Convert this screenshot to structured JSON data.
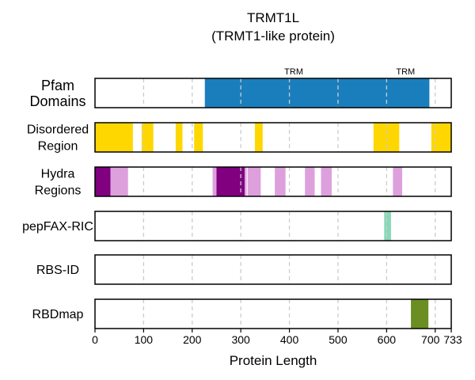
{
  "chart_data": {
    "type": "bar",
    "title": "TRMT1L",
    "subtitle": "(TRMT1-like protein)",
    "xlabel": "Protein Length",
    "xlim": [
      0,
      733
    ],
    "x_ticks": [
      0,
      100,
      200,
      300,
      400,
      500,
      600,
      700,
      733
    ],
    "grid": "vertical dashed at every 100",
    "tracks": [
      {
        "name": "Pfam\nDomains",
        "features": [
          {
            "start": 226,
            "end": 688,
            "color": "#1a7ebd"
          }
        ],
        "annotations": [
          {
            "text": "TRM",
            "x": 409
          },
          {
            "text": "TRM",
            "x": 639
          }
        ]
      },
      {
        "name": "Disordered\nRegion",
        "features": [
          {
            "start": 0,
            "end": 78,
            "color": "#ffd700"
          },
          {
            "start": 96,
            "end": 120,
            "color": "#ffd700"
          },
          {
            "start": 166,
            "end": 180,
            "color": "#ffd700"
          },
          {
            "start": 204,
            "end": 222,
            "color": "#ffd700"
          },
          {
            "start": 329,
            "end": 345,
            "color": "#ffd700"
          },
          {
            "start": 573,
            "end": 626,
            "color": "#ffd700"
          },
          {
            "start": 692,
            "end": 733,
            "color": "#ffd700"
          }
        ]
      },
      {
        "name": "Hydra\nRegions",
        "features": [
          {
            "start": 0,
            "end": 32,
            "color": "#800080"
          },
          {
            "start": 32,
            "end": 68,
            "color": "#dda0dd"
          },
          {
            "start": 242,
            "end": 250,
            "color": "#dda0dd"
          },
          {
            "start": 250,
            "end": 308,
            "color": "#800080"
          },
          {
            "start": 308,
            "end": 312,
            "color": "#dda0dd"
          },
          {
            "start": 314,
            "end": 341,
            "color": "#dda0dd"
          },
          {
            "start": 370,
            "end": 392,
            "color": "#dda0dd"
          },
          {
            "start": 432,
            "end": 452,
            "color": "#dda0dd"
          },
          {
            "start": 465,
            "end": 487,
            "color": "#dda0dd"
          },
          {
            "start": 613,
            "end": 632,
            "color": "#dda0dd"
          }
        ]
      },
      {
        "name": "pepFAX-RIC",
        "features": [
          {
            "start": 595,
            "end": 609,
            "color": "#88d8b8"
          }
        ]
      },
      {
        "name": "RBS-ID",
        "features": []
      },
      {
        "name": "RBDmap",
        "features": [
          {
            "start": 650,
            "end": 686,
            "color": "#6b8e23"
          }
        ]
      }
    ]
  },
  "colors": {
    "grid": "#cccccc",
    "frame": "#000000"
  }
}
